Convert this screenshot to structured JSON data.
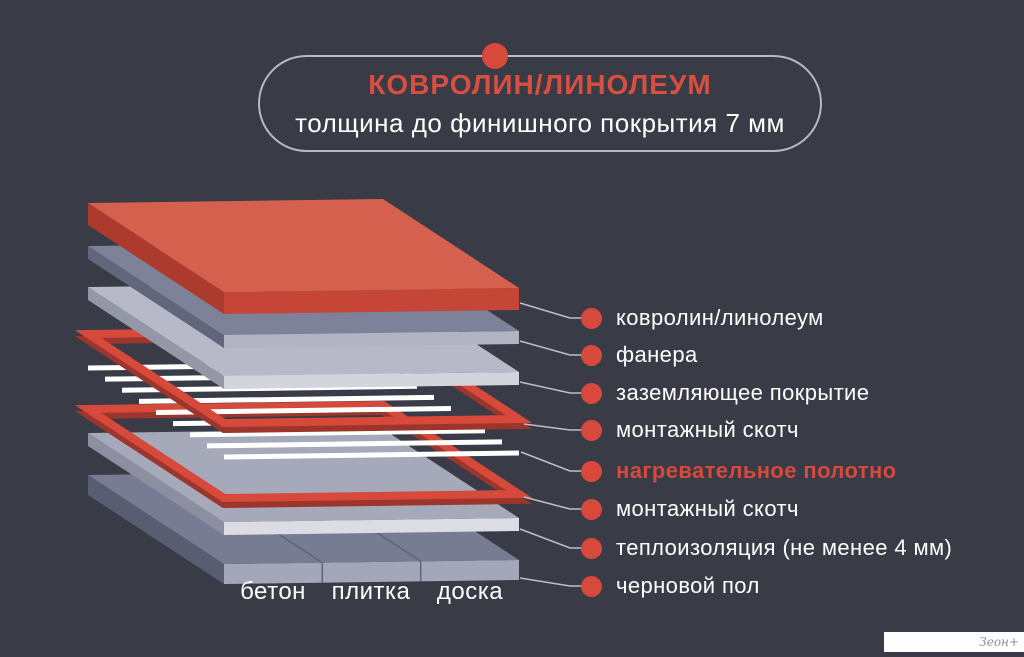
{
  "title_bubble": {
    "title": "КОВРОЛИН/ЛИНОЛЕУМ",
    "subtitle": "толщина до финишного покрытия 7 мм"
  },
  "layers": [
    {
      "label": "ковролин/линолеум",
      "highlight": false,
      "colors": {
        "top": "#d5604e",
        "right": "#c54537",
        "left": "#ac3a2d"
      }
    },
    {
      "label": "фанера",
      "highlight": false,
      "colors": {
        "top": "#7e8298",
        "right": "#b2b4c3",
        "left": "#62667b"
      }
    },
    {
      "label": "заземляющее покрытие",
      "highlight": false,
      "colors": {
        "top": "#b7b9c8",
        "right": "#d3d5de",
        "left": "#9497a8"
      }
    },
    {
      "label": "монтажный скотч",
      "highlight": false,
      "colors": {
        "main": "#d6493b",
        "shadow": "#9c352b"
      }
    },
    {
      "label": "нагревательное полотно",
      "highlight": true,
      "colors": {
        "stripe": "#ffffff"
      }
    },
    {
      "label": "монтажный скотч",
      "highlight": false,
      "colors": {
        "main": "#d6493b",
        "shadow": "#9c352b"
      }
    },
    {
      "label": "теплоизоляция (не менее 4 мм)",
      "highlight": false,
      "colors": {
        "top": "#a6a9b9",
        "right": "#dcdde4",
        "left": "#8c8fa0"
      }
    },
    {
      "label": "черновой пол",
      "highlight": false,
      "colors": {
        "top": "#787c92",
        "right": "#a4a7b9",
        "left": "#595d72",
        "division": "#60647a"
      }
    }
  ],
  "subfloor_options": [
    "бетон",
    "плитка",
    "доска"
  ],
  "watermark": {
    "text": "Зеон+"
  },
  "colors": {
    "background": "#393b46",
    "accent_red": "#d6493b",
    "bubble_border": "#b7bac6",
    "connector_line": "#bcbfca",
    "label_text": "#ffffff"
  }
}
